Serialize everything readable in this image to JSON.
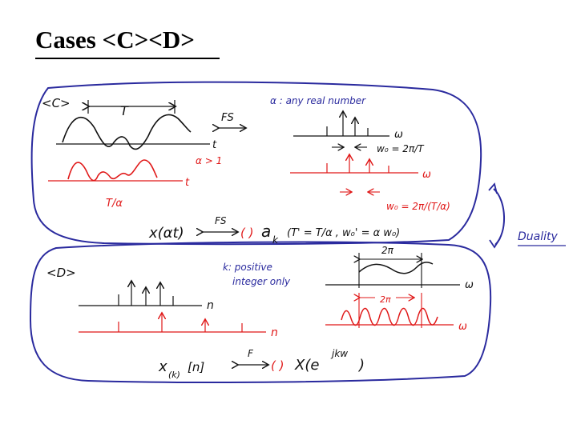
{
  "slide": {
    "title": "Cases <C><D>"
  },
  "colors": {
    "ink": "#111111",
    "blue": "#2a2a9e",
    "red": "#e01818"
  },
  "panel_c": {
    "label": "<C>",
    "period_label": "T",
    "time_axis": "t",
    "fs_label": "FS",
    "alpha_note": "α : any real number",
    "freq_axis": "ω",
    "w0_top": "w₀ = 2π/T",
    "alpha_cond": "α > 1",
    "scaled_period": "T/α",
    "red_time_axis": "t",
    "red_freq_axis": "ω",
    "w0_bottom": "w₀ = 2π/(T/α)",
    "pair_lhs": "x(αt)",
    "pair_fs": "FS",
    "pair_paren": "( )",
    "pair_rhs": "a",
    "pair_rhs_sub": "k",
    "pair_note": "(T' = T/α , w₀' = α w₀)"
  },
  "duality_label": "Duality",
  "panel_d": {
    "label": "<D>",
    "k_note_line1": "k: positive",
    "k_note_line2": "integer only",
    "n_axis": "n",
    "red_n_axis": "n",
    "spec_period_top": "2π",
    "freq_axis": "ω",
    "spec_period_red": "2π",
    "red_freq_axis": "ω",
    "pair_lhs": "x",
    "pair_lhs_sub": "(k)",
    "pair_lhs_arg": "[n]",
    "pair_f": "F",
    "pair_paren": "( )",
    "pair_rhs": "X(e",
    "pair_rhs_exp": "jkw",
    "pair_rhs_close": ")"
  }
}
